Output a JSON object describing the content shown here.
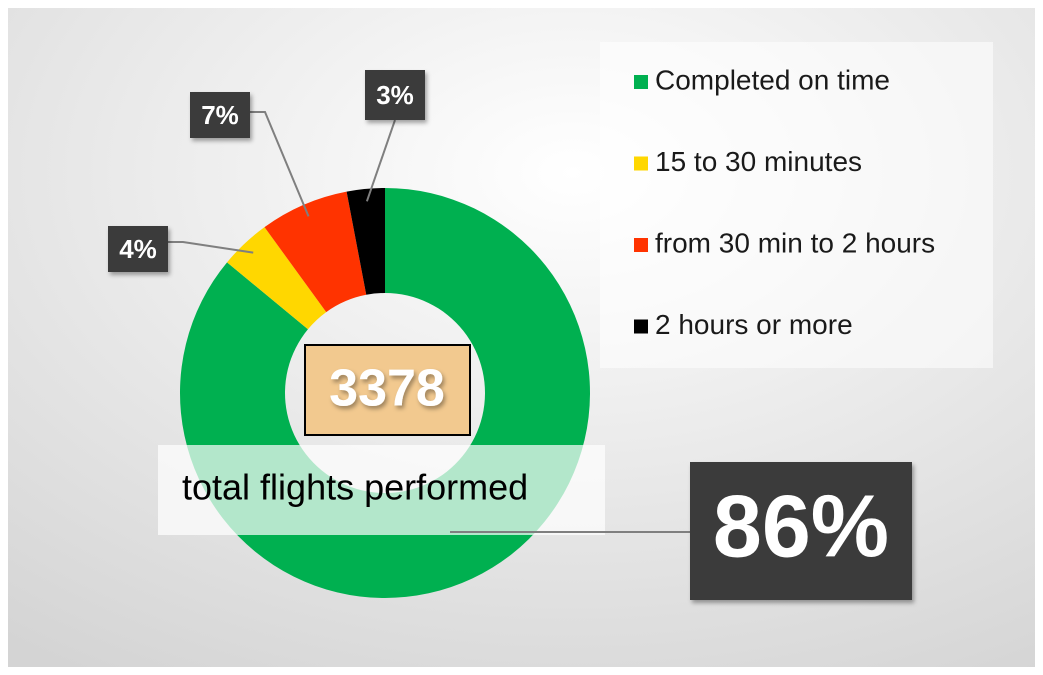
{
  "chart_data": {
    "type": "donut",
    "categories": [
      "Completed on time",
      "15 to 30 minutes",
      "from 30 min to 2 hours",
      "2 hours or more"
    ],
    "values": [
      86,
      4,
      7,
      3
    ],
    "value_labels": [
      "86%",
      "4%",
      "7%",
      "3%"
    ],
    "colors": [
      "#00b050",
      "#ffd700",
      "#ff3300",
      "#000000"
    ],
    "total_flights": 3378,
    "total_label": "total flights performed",
    "legend": "right"
  }
}
